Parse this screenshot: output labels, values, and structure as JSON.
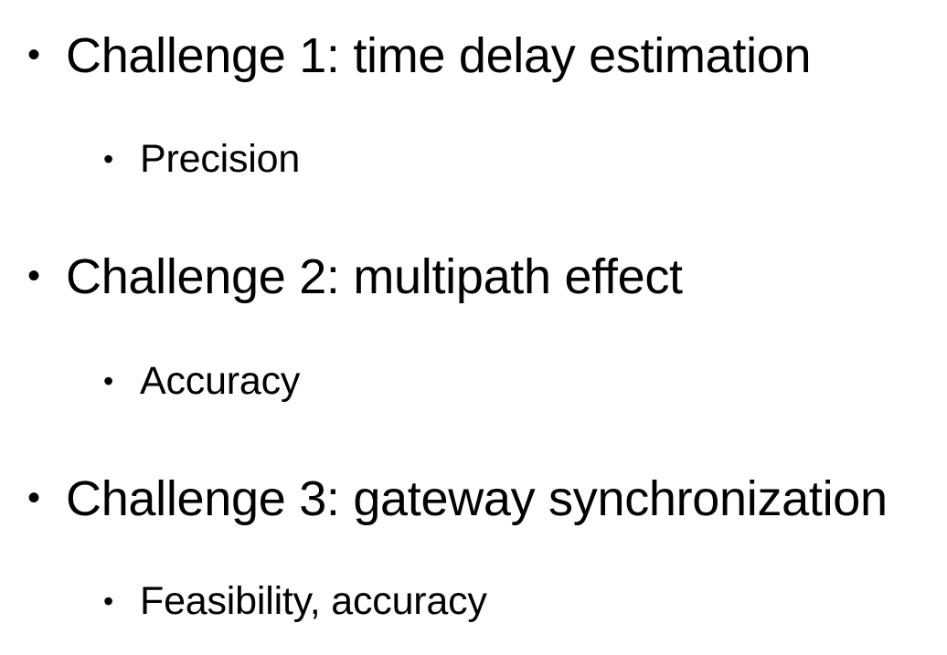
{
  "bullet_glyph": "•",
  "items": [
    {
      "text": "Challenge 1: time delay estimation",
      "sub": "Precision"
    },
    {
      "text": "Challenge 2: multipath effect",
      "sub": "Accuracy"
    },
    {
      "text": "Challenge 3: gateway synchronization",
      "sub": "Feasibility, accuracy"
    }
  ]
}
